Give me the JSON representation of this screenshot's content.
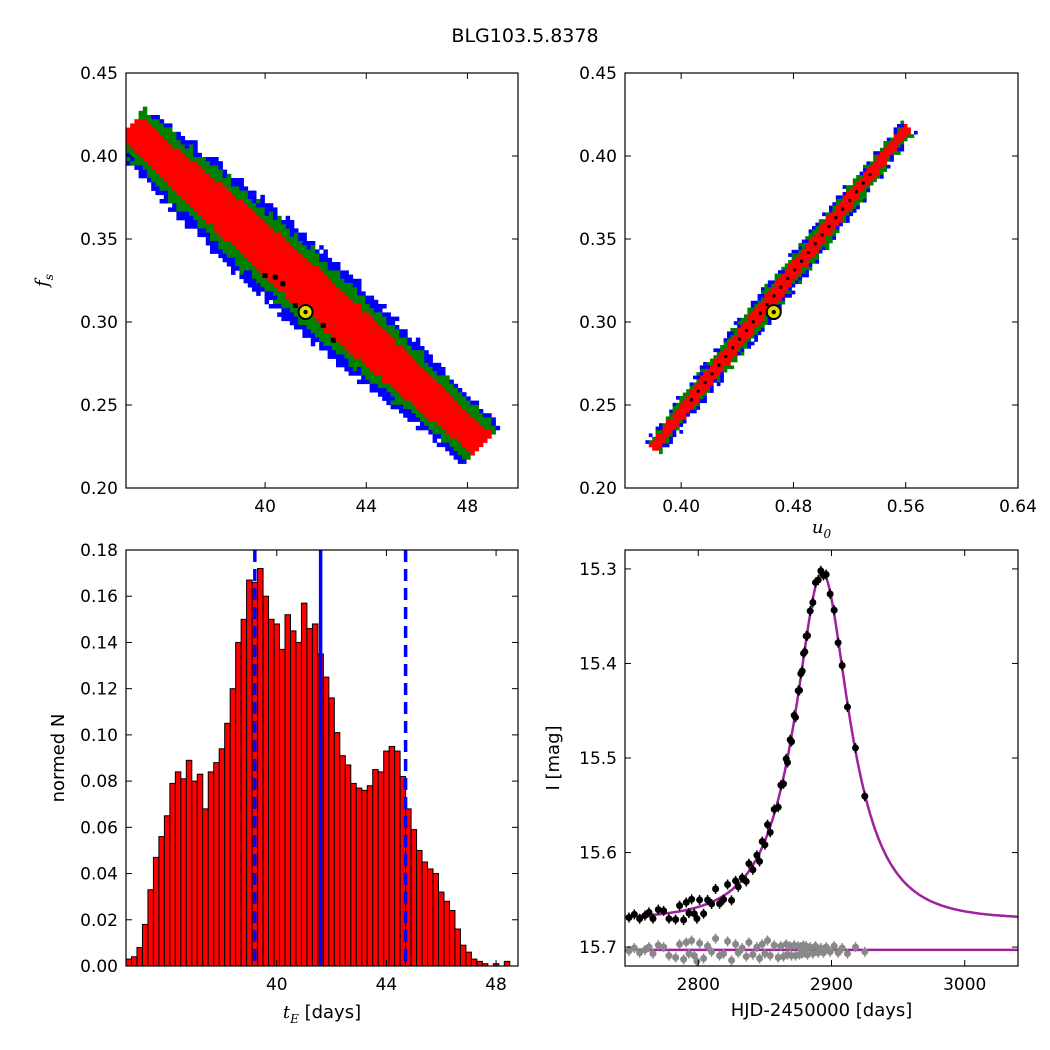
{
  "figure_title": "BLG103.5.8378",
  "chart_data": [
    {
      "type": "heatmap",
      "panel": "top-left",
      "title": "",
      "xlabel": "",
      "ylabel": "f",
      "ylabel_sub": "s",
      "xlim": [
        34.5,
        50
      ],
      "ylim": [
        0.2,
        0.45
      ],
      "xticks": [
        40,
        44,
        48
      ],
      "yticks": [
        0.2,
        0.25,
        0.3,
        0.35,
        0.4,
        0.45
      ],
      "ytick_labels": [
        "0.20",
        "0.25",
        "0.30",
        "0.35",
        "0.40",
        "0.45"
      ],
      "confidence_regions": [
        {
          "name": "3-sigma",
          "color": "#0000ff"
        },
        {
          "name": "2-sigma",
          "color": "#008000"
        },
        {
          "name": "1-sigma",
          "color": "#ff0000"
        }
      ],
      "band": {
        "x_start": 34.6,
        "y_start": 0.418,
        "x_end": 48.6,
        "y_end": 0.226
      },
      "best_fit": {
        "x": 41.6,
        "y": 0.306,
        "color": "#dddd00"
      },
      "extra_points": [
        [
          40.4,
          0.327
        ],
        [
          40.7,
          0.323
        ],
        [
          41.2,
          0.31
        ],
        [
          42.3,
          0.298
        ],
        [
          42.7,
          0.289
        ],
        [
          40.0,
          0.328
        ]
      ]
    },
    {
      "type": "heatmap",
      "panel": "top-right",
      "title": "",
      "xlabel": "u",
      "xlabel_sub": "0",
      "ylabel": "",
      "xlim": [
        0.36,
        0.64
      ],
      "ylim": [
        0.2,
        0.45
      ],
      "xticks": [
        0.4,
        0.48,
        0.56,
        0.64
      ],
      "xtick_labels": [
        "0.40",
        "0.48",
        "0.56",
        "0.64"
      ],
      "yticks": [
        0.2,
        0.25,
        0.3,
        0.35,
        0.4,
        0.45
      ],
      "ytick_labels": [
        "0.20",
        "0.25",
        "0.30",
        "0.35",
        "0.40",
        "0.45"
      ],
      "band": {
        "x_start": 0.38,
        "y_start": 0.224,
        "x_end": 0.562,
        "y_end": 0.418
      },
      "best_fit": {
        "x": 0.466,
        "y": 0.306,
        "color": "#dddd00"
      }
    },
    {
      "type": "bar",
      "panel": "bottom-left",
      "title": "",
      "xlabel": "t",
      "xlabel_sub": "E",
      "xlabel_unit": "[days]",
      "ylabel": "normed N",
      "xlim": [
        34.5,
        48.8
      ],
      "ylim": [
        0,
        0.18
      ],
      "xticks": [
        40,
        44,
        48
      ],
      "yticks": [
        0,
        0.02,
        0.04,
        0.06,
        0.08,
        0.1,
        0.12,
        0.14,
        0.16,
        0.18
      ],
      "ytick_labels": [
        "0.00",
        "0.02",
        "0.04",
        "0.06",
        "0.08",
        "0.10",
        "0.12",
        "0.14",
        "0.16",
        "0.18"
      ],
      "bin_start": 34.5,
      "bin_width": 0.2,
      "values": [
        0.003,
        0.004,
        0.008,
        0.018,
        0.033,
        0.047,
        0.056,
        0.065,
        0.079,
        0.084,
        0.081,
        0.089,
        0.08,
        0.083,
        0.068,
        0.084,
        0.088,
        0.094,
        0.105,
        0.12,
        0.14,
        0.15,
        0.167,
        0.166,
        0.172,
        0.16,
        0.15,
        0.148,
        0.137,
        0.152,
        0.145,
        0.14,
        0.157,
        0.146,
        0.148,
        0.135,
        0.125,
        0.116,
        0.101,
        0.091,
        0.087,
        0.079,
        0.077,
        0.076,
        0.078,
        0.085,
        0.084,
        0.093,
        0.095,
        0.093,
        0.082,
        0.068,
        0.059,
        0.05,
        0.045,
        0.042,
        0.04,
        0.032,
        0.028,
        0.024,
        0.016,
        0.009,
        0.006,
        0.003,
        0.002,
        0.001,
        0.0,
        0.001,
        0.0,
        0.002
      ],
      "bar_color": "#ff0000",
      "median": 41.6,
      "lower": 39.2,
      "upper": 44.7,
      "line_color": "#0000ff"
    },
    {
      "type": "scatter",
      "panel": "bottom-right",
      "title": "",
      "xlabel": "HJD-2450000 [days]",
      "ylabel": "I [mag]",
      "xlim": [
        2745,
        3040
      ],
      "ylim": [
        15.72,
        15.28
      ],
      "y_inverted": true,
      "xticks": [
        2800,
        2900,
        3000
      ],
      "yticks": [
        15.3,
        15.4,
        15.5,
        15.6,
        15.7
      ],
      "ytick_labels": [
        "15.3",
        "15.4",
        "15.5",
        "15.6",
        "15.7"
      ],
      "model": {
        "t0": 2893,
        "tE": 41.6,
        "u0": 0.466,
        "fs": 0.306,
        "I_base": 15.671,
        "color": "#a020a0"
      },
      "residual_baseline": 15.703,
      "data_color": "#000000",
      "residual_color": "#888888",
      "points_x": [
        2748,
        2752,
        2756,
        2760,
        2763,
        2766,
        2770,
        2774,
        2778,
        2783,
        2786,
        2789,
        2791,
        2793,
        2795,
        2797,
        2799,
        2801,
        2804,
        2807,
        2810,
        2813,
        2816,
        2819,
        2822,
        2825,
        2828,
        2830,
        2833,
        2836,
        2838,
        2841,
        2844,
        2846,
        2848,
        2850,
        2852,
        2854,
        2857,
        2860,
        2862,
        2864,
        2866,
        2867,
        2869,
        2870,
        2872,
        2873,
        2875,
        2876,
        2877,
        2878,
        2879,
        2880,
        2881,
        2882,
        2884,
        2886,
        2888,
        2890,
        2892,
        2894,
        2896,
        2899,
        2902,
        2905,
        2908,
        2912,
        2918,
        2925
      ],
      "points_dev": [
        0.001,
        -0.002,
        0.003,
        0.0,
        -0.003,
        0.004,
        -0.005,
        -0.003,
        0.006,
        0.008,
        -0.006,
        0.01,
        -0.008,
        0.004,
        -0.01,
        0.006,
        0.012,
        -0.007,
        0.009,
        -0.004,
        0.002,
        -0.012,
        0.006,
        0.004,
        -0.009,
        0.011,
        -0.006,
        0.003,
        -0.002,
        0.007,
        -0.008,
        0.005,
        -0.003,
        0.009,
        -0.006,
        0.004,
        -0.01,
        0.006,
        -0.005,
        0.008,
        -0.004,
        0.007,
        -0.006,
        0.005,
        -0.004,
        0.006,
        -0.005,
        0.006,
        -0.004,
        0.005,
        -0.003,
        0.004,
        -0.005,
        0.003,
        -0.004,
        0.005,
        -0.003,
        0.004,
        -0.004,
        0.003,
        -0.002,
        0.003,
        -0.003,
        0.002,
        -0.004,
        0.003,
        -0.002,
        0.004,
        -0.003,
        0.002
      ]
    }
  ]
}
